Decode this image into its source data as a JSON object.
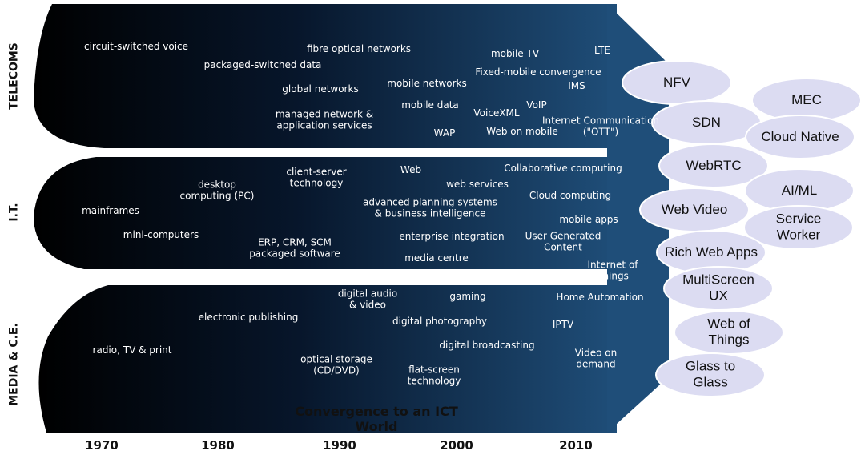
{
  "bands": [
    {
      "label": "TELECOMS",
      "items": [
        "circuit-switched voice",
        "packaged-switched data",
        "fibre optical networks",
        "global networks",
        "mobile networks",
        "managed network &\napplication services",
        "mobile data",
        "WAP",
        "mobile TV",
        "LTE",
        "Fixed-mobile convergence",
        "IMS",
        "VoiceXML",
        "VoIP",
        "Web on mobile",
        "Internet Communication\n(\"OTT\")"
      ]
    },
    {
      "label": "I.T.",
      "items": [
        "mainframes",
        "mini-computers",
        "desktop\ncomputing (PC)",
        "client-server\ntechnology",
        "ERP, CRM, SCM\npackaged software",
        "Web",
        "web services",
        "advanced planning systems\n& business intelligence",
        "enterprise integration",
        "media centre",
        "Collaborative computing",
        "Cloud computing",
        "mobile apps",
        "User Generated\nContent",
        "Internet of\nThings"
      ]
    },
    {
      "label": "MEDIA & C.E.",
      "items": [
        "radio, TV & print",
        "electronic publishing",
        "digital audio\n& video",
        "gaming",
        "digital photography",
        "optical storage\n(CD/DVD)",
        "digital broadcasting",
        "flat-screen\ntechnology",
        "Home Automation",
        "IPTV",
        "Video on\ndemand"
      ]
    }
  ],
  "convergence": "Convergence to an ICT\nWorld",
  "years": [
    "1970",
    "1980",
    "1990",
    "2000",
    "2010"
  ],
  "technologies": [
    "NFV",
    "MEC",
    "SDN",
    "Cloud Native",
    "WebRTC",
    "AI/ML",
    "Web Video",
    "Service\nWorker",
    "Rich Web Apps",
    "MultiScreen\nUX",
    "Web of\nThings",
    "Glass to\nGlass"
  ]
}
